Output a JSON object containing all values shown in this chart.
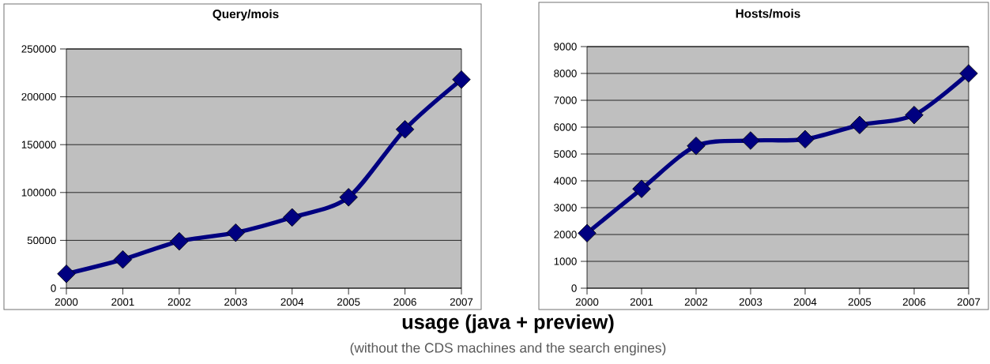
{
  "chart_data": [
    {
      "type": "line",
      "title": "Query/mois",
      "categories": [
        "2000",
        "2001",
        "2002",
        "2003",
        "2004",
        "2005",
        "2006",
        "2007"
      ],
      "values": [
        15000,
        30000,
        49000,
        58000,
        74000,
        95000,
        166000,
        218000
      ],
      "color": "#000080",
      "ylim": [
        0,
        250000
      ],
      "yticks": [
        0,
        50000,
        100000,
        150000,
        200000,
        250000
      ],
      "grid": "y",
      "marker": "diamond",
      "line_style": "solid"
    },
    {
      "type": "line",
      "title": "Hosts/mois",
      "categories": [
        "2000",
        "2001",
        "2002",
        "2003",
        "2004",
        "2005",
        "2006",
        "2007"
      ],
      "values": [
        2050,
        3700,
        5300,
        5500,
        5550,
        6080,
        6450,
        8000
      ],
      "color": "#000080",
      "ylim": [
        0,
        9000
      ],
      "yticks": [
        0,
        1000,
        2000,
        3000,
        4000,
        5000,
        6000,
        7000,
        8000,
        9000
      ],
      "grid": "y",
      "marker": "diamond",
      "line_style": "solid"
    },
    {
      "type": "other",
      "title": "usage (java + preview)",
      "subtitle": "(without the CDS machines and the search engines)"
    }
  ]
}
